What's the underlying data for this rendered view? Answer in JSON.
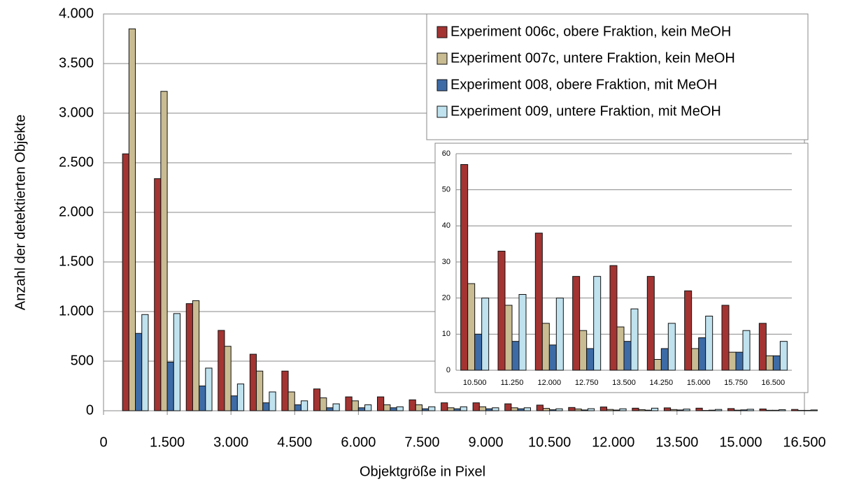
{
  "chart_data": [
    {
      "type": "bar",
      "x_label": "Objektgröße in Pixel",
      "y_label": "Anzahl der detektierten Objekte",
      "x": [
        750,
        1500,
        2250,
        3000,
        3750,
        4500,
        5250,
        6000,
        6750,
        7500,
        8250,
        9000,
        9750,
        10500,
        11250,
        12000,
        12750,
        13500,
        14250,
        15000,
        15750,
        16500
      ],
      "series": [
        {
          "name": "Experiment 006c, obere Fraktion, kein MeOH",
          "color": "#a33432",
          "values": [
            2590,
            2340,
            1080,
            810,
            570,
            400,
            220,
            140,
            140,
            110,
            80,
            80,
            70,
            57,
            33,
            38,
            26,
            29,
            26,
            22,
            18,
            13
          ]
        },
        {
          "name": "Experiment 007c, untere Fraktion, kein MeOH",
          "color": "#c9bc92",
          "values": [
            3850,
            3220,
            1110,
            650,
            400,
            190,
            130,
            100,
            60,
            60,
            30,
            40,
            30,
            24,
            18,
            13,
            11,
            12,
            3,
            6,
            5,
            4
          ]
        },
        {
          "name": "Experiment 008, obere Fraktion, mit MeOH",
          "color": "#3d6ba6",
          "values": [
            780,
            490,
            250,
            150,
            80,
            60,
            30,
            30,
            30,
            20,
            20,
            20,
            20,
            10,
            8,
            7,
            6,
            8,
            6,
            9,
            5,
            4
          ]
        },
        {
          "name": "Experiment 009, untere Fraktion, mit MeOH",
          "color": "#c0e2ef",
          "values": [
            970,
            980,
            430,
            270,
            190,
            100,
            70,
            60,
            40,
            40,
            40,
            30,
            30,
            20,
            21,
            20,
            26,
            17,
            13,
            15,
            11,
            8
          ]
        }
      ],
      "xlim": [
        0,
        16500
      ],
      "xticks": [
        0,
        {
          "value": 1500,
          "label": "1.500"
        },
        {
          "value": 3000,
          "label": "3.000"
        },
        {
          "value": 4500,
          "label": "4.500"
        },
        {
          "value": 6000,
          "label": "6.000"
        },
        {
          "value": 7500,
          "label": "7.500"
        },
        {
          "value": 9000,
          "label": "9.000"
        },
        {
          "value": 10500,
          "label": "10.500"
        },
        {
          "value": 12000,
          "label": "12.000"
        },
        {
          "value": 13500,
          "label": "13.500"
        },
        {
          "value": 15000,
          "label": "15.000"
        },
        {
          "value": 16500,
          "label": "16.500"
        }
      ],
      "ylim": [
        0,
        4000
      ],
      "yticks": [
        0,
        500,
        {
          "value": 1000,
          "label": "1.000"
        },
        {
          "value": 1500,
          "label": "1.500"
        },
        {
          "value": 2000,
          "label": "2.000"
        },
        {
          "value": 2500,
          "label": "2.500"
        },
        {
          "value": 3000,
          "label": "3.000"
        },
        {
          "value": 3500,
          "label": "3.500"
        },
        {
          "value": 4000,
          "label": "4.000"
        }
      ],
      "grid": true,
      "legend": "upper right"
    },
    {
      "type": "bar",
      "categories": [
        "10.500",
        "11.250",
        "12.000",
        "12.750",
        "13.500",
        "14.250",
        "15.000",
        "15.750",
        "16.500"
      ],
      "series": [
        {
          "color": "#a33432",
          "values": [
            57,
            33,
            38,
            26,
            29,
            26,
            22,
            18,
            13
          ]
        },
        {
          "color": "#c9bc92",
          "values": [
            24,
            18,
            13,
            11,
            12,
            3,
            6,
            5,
            4
          ]
        },
        {
          "color": "#3d6ba6",
          "values": [
            10,
            8,
            7,
            6,
            8,
            6,
            9,
            5,
            4
          ]
        },
        {
          "color": "#c0e2ef",
          "values": [
            20,
            21,
            20,
            26,
            17,
            13,
            15,
            11,
            8
          ]
        }
      ],
      "ylim": [
        0,
        60
      ],
      "yticks": [
        0,
        10,
        20,
        30,
        40,
        50,
        60
      ],
      "grid": true
    }
  ]
}
